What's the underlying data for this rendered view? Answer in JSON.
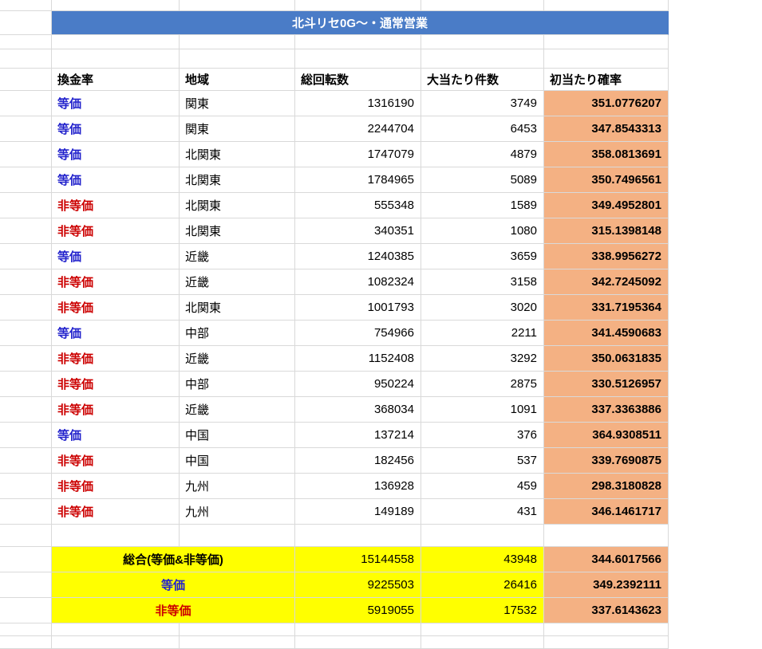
{
  "title": "北斗リセ0G〜・通常営業",
  "columns": [
    "換金率",
    "地域",
    "総回転数",
    "大当たり件数",
    "初当たり確率"
  ],
  "rows": [
    {
      "rate": "等価",
      "region": "関東",
      "spins": 1316190,
      "hits": 3749,
      "prob": "351.0776207"
    },
    {
      "rate": "等価",
      "region": "関東",
      "spins": 2244704,
      "hits": 6453,
      "prob": "347.8543313"
    },
    {
      "rate": "等価",
      "region": "北関東",
      "spins": 1747079,
      "hits": 4879,
      "prob": "358.0813691"
    },
    {
      "rate": "等価",
      "region": "北関東",
      "spins": 1784965,
      "hits": 5089,
      "prob": "350.7496561"
    },
    {
      "rate": "非等価",
      "region": "北関東",
      "spins": 555348,
      "hits": 1589,
      "prob": "349.4952801"
    },
    {
      "rate": "非等価",
      "region": "北関東",
      "spins": 340351,
      "hits": 1080,
      "prob": "315.1398148"
    },
    {
      "rate": "等価",
      "region": "近畿",
      "spins": 1240385,
      "hits": 3659,
      "prob": "338.9956272"
    },
    {
      "rate": "非等価",
      "region": "近畿",
      "spins": 1082324,
      "hits": 3158,
      "prob": "342.7245092"
    },
    {
      "rate": "非等価",
      "region": "北関東",
      "spins": 1001793,
      "hits": 3020,
      "prob": "331.7195364"
    },
    {
      "rate": "等価",
      "region": "中部",
      "spins": 754966,
      "hits": 2211,
      "prob": "341.4590683"
    },
    {
      "rate": "非等価",
      "region": "近畿",
      "spins": 1152408,
      "hits": 3292,
      "prob": "350.0631835"
    },
    {
      "rate": "非等価",
      "region": "中部",
      "spins": 950224,
      "hits": 2875,
      "prob": "330.5126957"
    },
    {
      "rate": "非等価",
      "region": "近畿",
      "spins": 368034,
      "hits": 1091,
      "prob": "337.3363886"
    },
    {
      "rate": "等価",
      "region": "中国",
      "spins": 137214,
      "hits": 376,
      "prob": "364.9308511"
    },
    {
      "rate": "非等価",
      "region": "中国",
      "spins": 182456,
      "hits": 537,
      "prob": "339.7690875"
    },
    {
      "rate": "非等価",
      "region": "九州",
      "spins": 136928,
      "hits": 459,
      "prob": "298.3180828"
    },
    {
      "rate": "非等価",
      "region": "九州",
      "spins": 149189,
      "hits": 431,
      "prob": "346.1461717"
    }
  ],
  "summary": [
    {
      "label": "総合(等価&非等価)",
      "label_color": "black",
      "spins": 15144558,
      "hits": 43948,
      "prob": "344.6017566"
    },
    {
      "label": "等価",
      "label_color": "blue",
      "spins": 9225503,
      "hits": 26416,
      "prob": "349.2392111"
    },
    {
      "label": "非等価",
      "label_color": "red",
      "spins": 5919055,
      "hits": 17532,
      "prob": "337.6143623"
    }
  ],
  "colors": {
    "title_bar": "#4A7CC7",
    "equal_text": "#2222CC",
    "unequal_text": "#CC0000",
    "probability_bg": "#F4B183",
    "summary_bg": "#FFFF00",
    "gridline": "#D9D9D9"
  }
}
